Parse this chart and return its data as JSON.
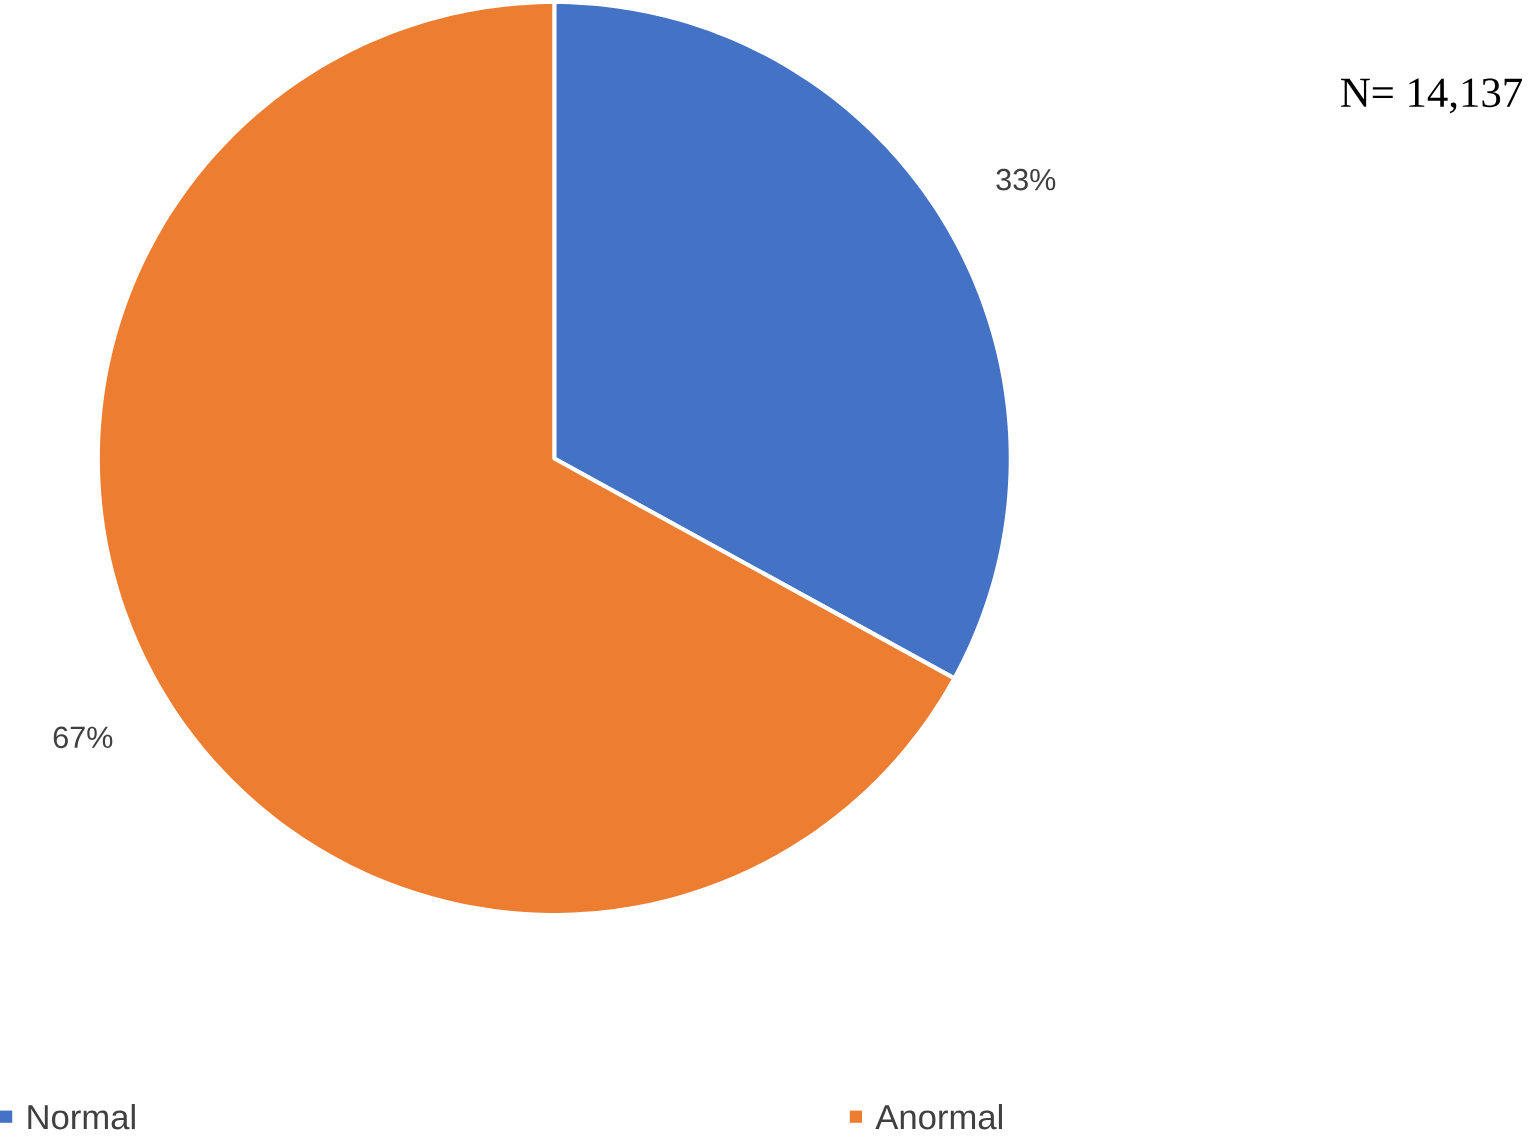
{
  "chart_data": {
    "type": "pie",
    "categories": [
      "Normal",
      "Anormal"
    ],
    "values": [
      33,
      67
    ],
    "value_labels": [
      "33%",
      "67%"
    ],
    "colors": [
      "#4472c4",
      "#ed7d31"
    ],
    "legend": "bottom",
    "annotations": [
      "N= 14,137"
    ]
  }
}
